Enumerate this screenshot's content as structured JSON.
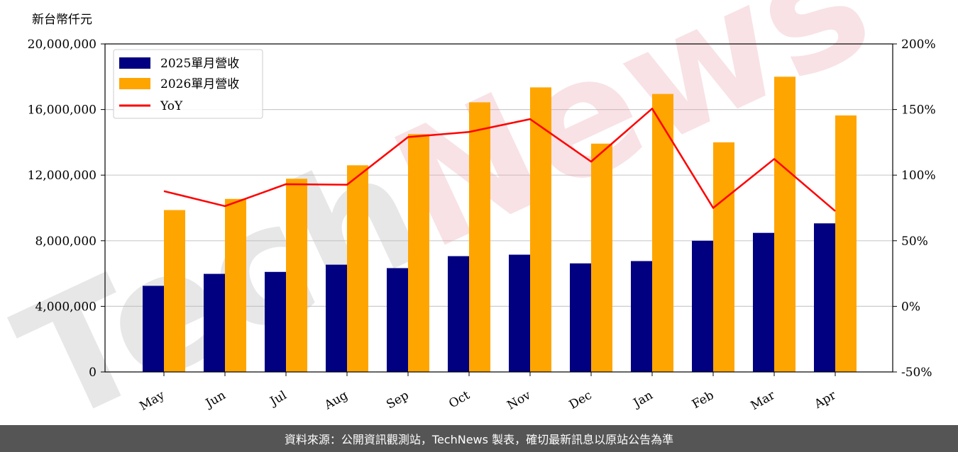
{
  "chart_data": {
    "type": "bar",
    "categories": [
      "May",
      "Jun",
      "Jul",
      "Aug",
      "Sep",
      "Oct",
      "Nov",
      "Dec",
      "Jan",
      "Feb",
      "Mar",
      "Apr"
    ],
    "series": [
      {
        "name": "2025單月營收",
        "type": "bar",
        "color": "#000080",
        "values": [
          5250000,
          5980000,
          6100000,
          6540000,
          6330000,
          7060000,
          7150000,
          6620000,
          6760000,
          8000000,
          8480000,
          9060000
        ]
      },
      {
        "name": "2026單月營收",
        "type": "bar",
        "color": "#FFA500",
        "values": [
          9870000,
          10550000,
          11780000,
          12600000,
          14500000,
          16440000,
          17350000,
          13920000,
          16950000,
          14000000,
          18000000,
          15640000
        ]
      },
      {
        "name": "YoY",
        "type": "line",
        "axis": "right",
        "color": "#FF0000",
        "values": [
          87.8,
          76.4,
          93.1,
          92.7,
          129.0,
          132.9,
          142.7,
          110.3,
          150.7,
          75.0,
          112.3,
          72.6
        ]
      }
    ],
    "ylabel": "新台幣仟元",
    "ylim": [
      0,
      20000000
    ],
    "yticks": [
      "0",
      "4,000,000",
      "8,000,000",
      "12,000,000",
      "16,000,000",
      "20,000,000"
    ],
    "y2lim": [
      -50,
      200
    ],
    "y2ticks": [
      "-50%",
      "0%",
      "50%",
      "100%",
      "150%",
      "200%"
    ],
    "grid": true,
    "legend": "top-left"
  },
  "watermark": "TechNews",
  "footer": "資料來源：公開資訊觀測站，TechNews 製表，確切最新訊息以原站公告為準"
}
